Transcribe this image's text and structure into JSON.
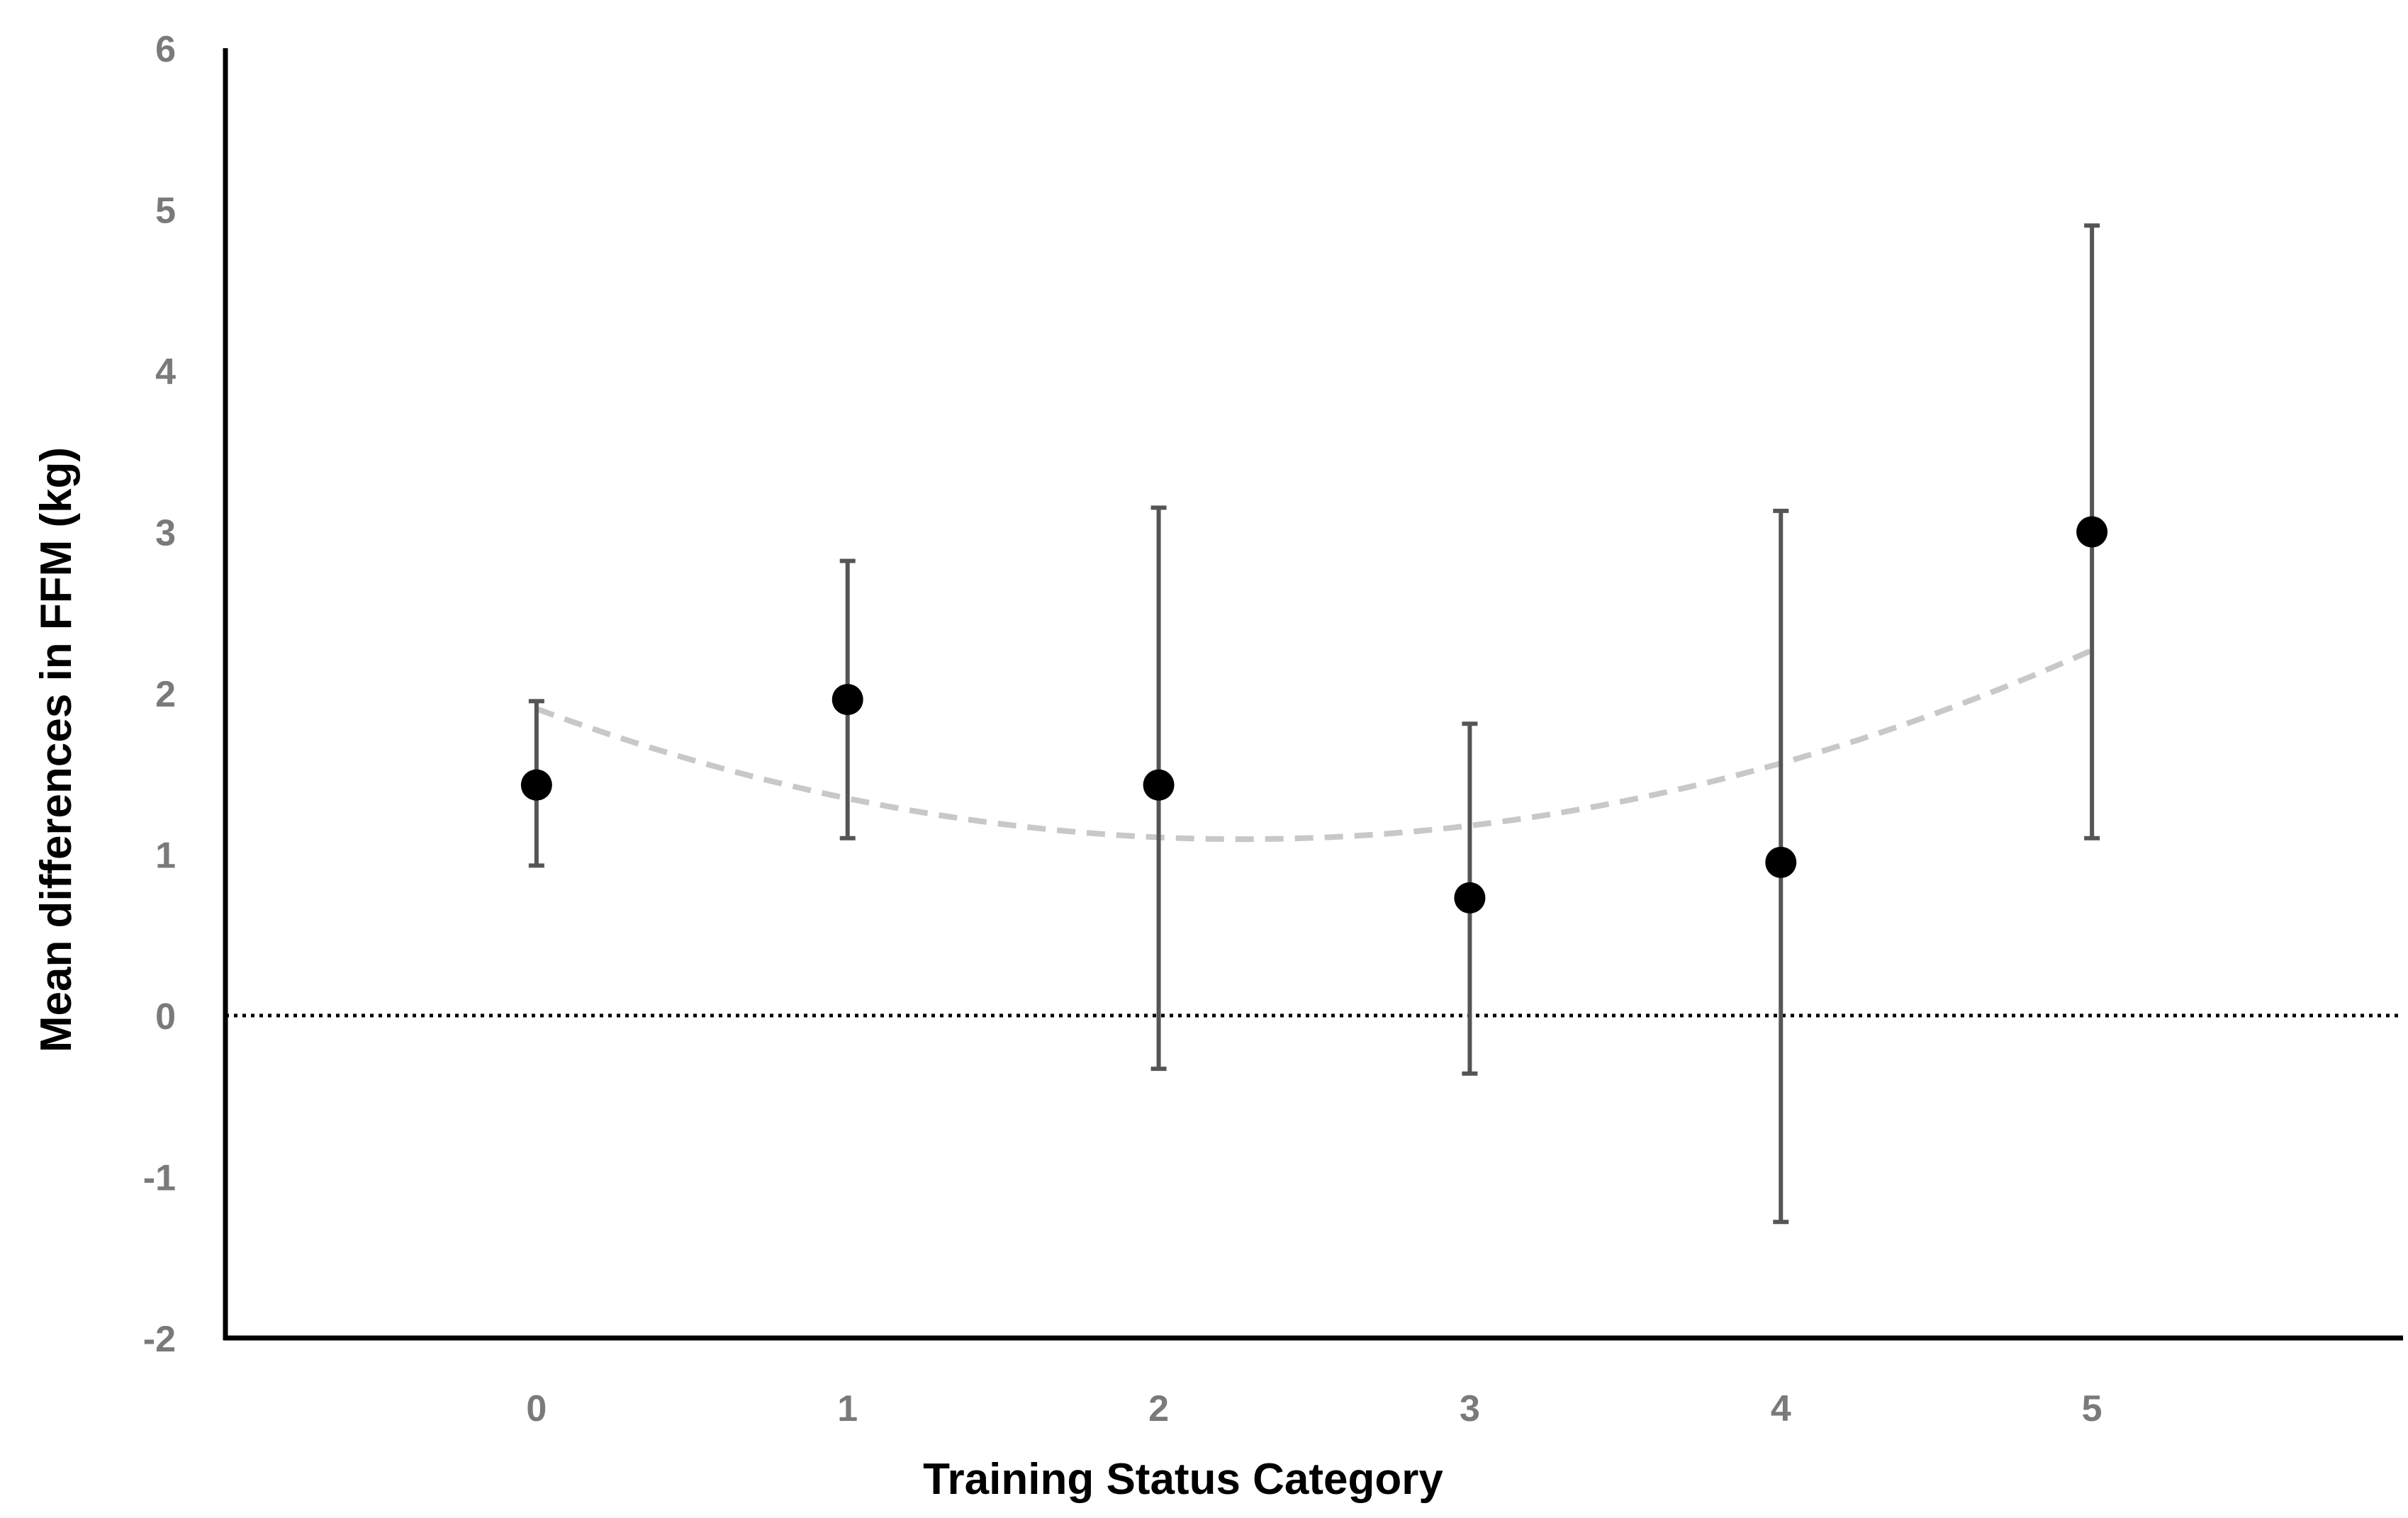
{
  "chart_data": {
    "type": "scatter",
    "title": "",
    "xlabel": "Training Status Category",
    "ylabel": "Mean differences in FFM (kg)",
    "xlim": [
      -1,
      6
    ],
    "ylim": [
      -2,
      6
    ],
    "x_ticks": [
      "0",
      "1",
      "2",
      "3",
      "4",
      "5"
    ],
    "y_ticks": [
      "-2",
      "-1",
      "0",
      "1",
      "2",
      "3",
      "4",
      "5",
      "6"
    ],
    "grid": false,
    "legend": "none",
    "series": [
      {
        "marker": "filled-circle",
        "color": "#000000",
        "points": [
          {
            "x": 0,
            "y": 1.43,
            "err_low": 0.93,
            "err_high": 1.95
          },
          {
            "x": 1,
            "y": 1.96,
            "err_low": 1.1,
            "err_high": 2.82
          },
          {
            "x": 2,
            "y": 1.43,
            "err_low": -0.33,
            "err_high": 3.15
          },
          {
            "x": 3,
            "y": 0.73,
            "err_low": -0.36,
            "err_high": 1.81
          },
          {
            "x": 4,
            "y": 0.95,
            "err_low": -1.28,
            "err_high": 3.13
          },
          {
            "x": 5,
            "y": 3.0,
            "err_low": 1.1,
            "err_high": 4.9
          }
        ]
      }
    ],
    "trendline": {
      "kind": "quadratic",
      "style": "dashed",
      "color": "#c8c8c8",
      "x_range": [
        0,
        5
      ],
      "coefficients": {
        "a": 0.1571,
        "b": -0.7129,
        "c": 1.9026
      }
    },
    "reference_line": {
      "y": 0,
      "style": "dotted",
      "color": "#000000"
    },
    "errorbar_color": "#555555",
    "axis_color": "#000000"
  }
}
